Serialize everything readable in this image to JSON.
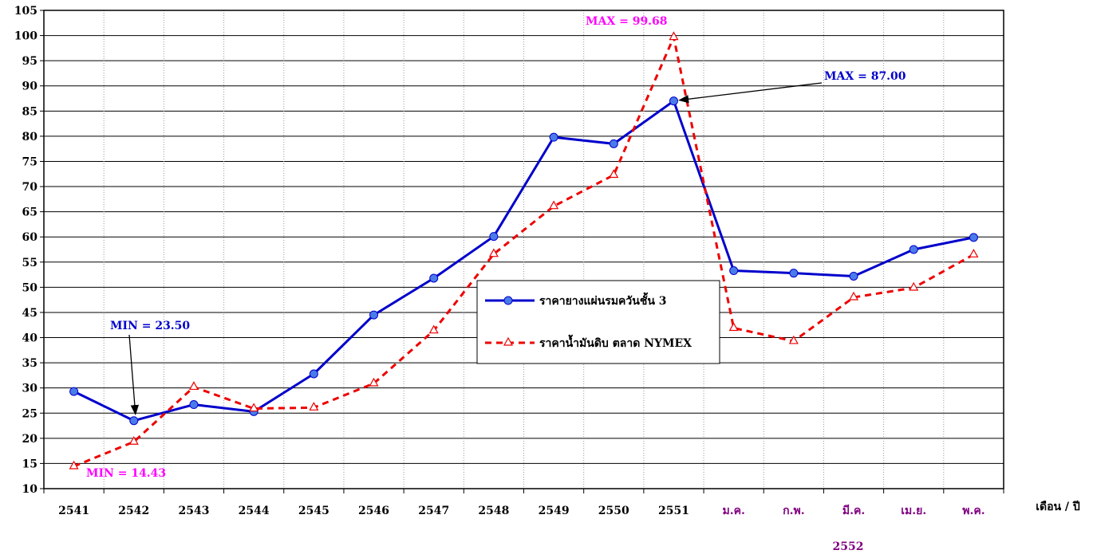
{
  "chart_data": {
    "type": "line",
    "categories": [
      "2541",
      "2542",
      "2543",
      "2544",
      "2545",
      "2546",
      "2547",
      "2548",
      "2549",
      "2550",
      "2551",
      "ม.ค.",
      "ก.พ.",
      "มี.ค.",
      "เม.ย.",
      "พ.ค."
    ],
    "category_colors": [
      "#000000",
      "#000000",
      "#000000",
      "#000000",
      "#000000",
      "#000000",
      "#000000",
      "#000000",
      "#000000",
      "#000000",
      "#000000",
      "#800080",
      "#800080",
      "#800080",
      "#800080",
      "#800080"
    ],
    "year_label": "2552",
    "xlabel": "เดือน / ปี",
    "ylabel": "",
    "ylim": [
      10,
      105
    ],
    "ytick_step": 5,
    "grid": true,
    "legend_position": "center-right",
    "series": [
      {
        "name": "ราคายางแผ่นรมควันชั้น 3",
        "color": "#0000CC",
        "style": "solid",
        "marker": "circle",
        "values": [
          29.3,
          23.5,
          26.7,
          25.3,
          32.8,
          44.5,
          51.8,
          60.1,
          79.8,
          78.5,
          87.0,
          53.3,
          52.8,
          52.2,
          57.5,
          59.9
        ]
      },
      {
        "name": "ราคาน้ำมันดิบ ตลาด NYMEX",
        "color": "#EE0000",
        "style": "dashed",
        "marker": "triangle",
        "values": [
          14.43,
          19.3,
          30.2,
          25.9,
          26.1,
          30.9,
          41.4,
          56.6,
          66.1,
          72.3,
          99.68,
          41.9,
          39.3,
          48.0,
          49.9,
          56.5
        ]
      }
    ],
    "annotations": [
      {
        "text": "MIN = 23.50",
        "color": "#0000CC",
        "series": 0,
        "index": 1
      },
      {
        "text": "MIN = 14.43",
        "color": "#FF00FF",
        "series": 1,
        "index": 0
      },
      {
        "text": "MAX = 99.68",
        "color": "#FF00FF",
        "series": 1,
        "index": 10
      },
      {
        "text": "MAX = 87.00",
        "color": "#0000CC",
        "series": 0,
        "index": 10
      }
    ]
  }
}
